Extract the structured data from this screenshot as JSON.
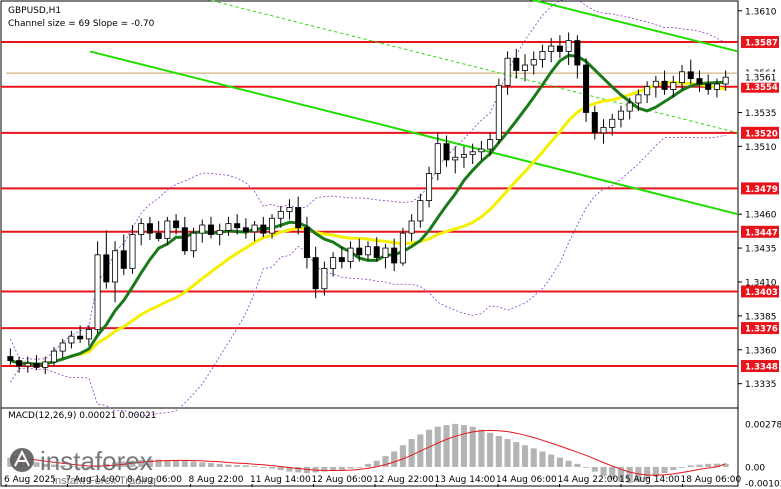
{
  "window": {
    "symbol": "GBPUSD,H1",
    "channel_info": "Channel size = 69 Slope = -0.70"
  },
  "price_axis": {
    "ticks": [
      "1.3610",
      "1.3535",
      "1.3510",
      "1.3460",
      "1.3435",
      "1.3410",
      "1.3385",
      "1.3360",
      "1.3335"
    ]
  },
  "levels": [
    {
      "label": "1.3587",
      "color": "#e8141b"
    },
    {
      "label": "1.3554",
      "color": "#e8141b"
    },
    {
      "label": "1.3520",
      "color": "#e8141b"
    },
    {
      "label": "1.3479",
      "color": "#e8141b"
    },
    {
      "label": "1.3447",
      "color": "#e8141b"
    },
    {
      "label": "1.3403",
      "color": "#e8141b"
    },
    {
      "label": "1.3376",
      "color": "#e8141b"
    },
    {
      "label": "1.3348",
      "color": "#e8141b"
    }
  ],
  "price_badges": [
    {
      "label": "1.3564"
    },
    {
      "label": "1.3561"
    }
  ],
  "time_axis": {
    "labels": [
      "6 Aug 2025",
      "7 Aug 14:00",
      "8 Aug 06:00",
      "8 Aug 22:00",
      "11 Aug 14:00",
      "12 Aug 06:00",
      "12 Aug 22:00",
      "13 Aug 14:00",
      "14 Aug 06:00",
      "14 Aug 22:00",
      "15 Aug 14:00",
      "18 Aug 06:00"
    ]
  },
  "macd": {
    "title": "MACD(12,26,9) 0.00021 0.00021",
    "ticks": [
      "0.00278",
      "0.00",
      "-0.00103"
    ]
  },
  "watermark": {
    "brand": "instaforex",
    "tagline": "Instant Forex Trading"
  },
  "colors": {
    "candles": "#000000",
    "level_line": "#e8141b",
    "channel": "#22dd00",
    "ma_fast": "#1a7a1a",
    "ma_slow": "#f5f000",
    "bollinger": "#8a3cc8",
    "macd_hist": "#b4b4b4",
    "macd_signal": "#e8141b"
  },
  "chart_data": {
    "type": "candlestick",
    "symbol": "GBPUSD",
    "timeframe": "H1",
    "y_range": [
      1.332,
      1.3615
    ],
    "levels": [
      1.3587,
      1.3554,
      1.352,
      1.3479,
      1.3447,
      1.3403,
      1.3376,
      1.3348
    ],
    "last_price": 1.3561,
    "price_marker": 1.3564,
    "ohlc": [
      [
        1.3355,
        1.3361,
        1.3349,
        1.3352
      ],
      [
        1.3352,
        1.3355,
        1.3343,
        1.3348
      ],
      [
        1.3348,
        1.3355,
        1.3343,
        1.335
      ],
      [
        1.335,
        1.3356,
        1.3345,
        1.3347
      ],
      [
        1.3347,
        1.3355,
        1.3342,
        1.3351
      ],
      [
        1.3351,
        1.3362,
        1.3348,
        1.3359
      ],
      [
        1.3359,
        1.3368,
        1.3354,
        1.3365
      ],
      [
        1.3365,
        1.3374,
        1.3361,
        1.337
      ],
      [
        1.337,
        1.3378,
        1.3365,
        1.3368
      ],
      [
        1.3368,
        1.3378,
        1.3363,
        1.3375
      ],
      [
        1.3375,
        1.344,
        1.3372,
        1.343
      ],
      [
        1.343,
        1.3448,
        1.3405,
        1.341
      ],
      [
        1.341,
        1.344,
        1.3395,
        1.3433
      ],
      [
        1.3433,
        1.3445,
        1.3415,
        1.342
      ],
      [
        1.342,
        1.3452,
        1.3416,
        1.3445
      ],
      [
        1.3445,
        1.3457,
        1.3437,
        1.3453
      ],
      [
        1.3453,
        1.3458,
        1.3441,
        1.3446
      ],
      [
        1.3446,
        1.3455,
        1.344,
        1.3442
      ],
      [
        1.3442,
        1.3458,
        1.3437,
        1.3455
      ],
      [
        1.3455,
        1.346,
        1.3445,
        1.345
      ],
      [
        1.345,
        1.3458,
        1.343,
        1.3433
      ],
      [
        1.3433,
        1.345,
        1.3428,
        1.3446
      ],
      [
        1.3446,
        1.3456,
        1.3439,
        1.3452
      ],
      [
        1.3452,
        1.3458,
        1.3442,
        1.3445
      ],
      [
        1.3445,
        1.3453,
        1.3437,
        1.3448
      ],
      [
        1.3448,
        1.3458,
        1.3444,
        1.3453
      ],
      [
        1.3453,
        1.346,
        1.3445,
        1.345
      ],
      [
        1.345,
        1.3457,
        1.3442,
        1.3447
      ],
      [
        1.3447,
        1.3455,
        1.344,
        1.3452
      ],
      [
        1.3452,
        1.3458,
        1.3443,
        1.3446
      ],
      [
        1.3446,
        1.346,
        1.3442,
        1.3457
      ],
      [
        1.3457,
        1.3466,
        1.345,
        1.3462
      ],
      [
        1.3462,
        1.3471,
        1.3456,
        1.3465
      ],
      [
        1.3465,
        1.3473,
        1.3445,
        1.345
      ],
      [
        1.345,
        1.3458,
        1.342,
        1.3428
      ],
      [
        1.3428,
        1.3436,
        1.3398,
        1.3405
      ],
      [
        1.3405,
        1.3425,
        1.34,
        1.342
      ],
      [
        1.342,
        1.3432,
        1.3414,
        1.3428
      ],
      [
        1.3428,
        1.3436,
        1.342,
        1.3425
      ],
      [
        1.3425,
        1.344,
        1.342,
        1.3435
      ],
      [
        1.3435,
        1.3442,
        1.3425,
        1.343
      ],
      [
        1.343,
        1.344,
        1.3426,
        1.3436
      ],
      [
        1.3436,
        1.3443,
        1.3425,
        1.3428
      ],
      [
        1.3428,
        1.3438,
        1.342,
        1.3435
      ],
      [
        1.3435,
        1.3442,
        1.3418,
        1.3424
      ],
      [
        1.3424,
        1.345,
        1.3422,
        1.3446
      ],
      [
        1.3446,
        1.346,
        1.344,
        1.3455
      ],
      [
        1.3455,
        1.3475,
        1.345,
        1.347
      ],
      [
        1.347,
        1.3495,
        1.3465,
        1.349
      ],
      [
        1.349,
        1.352,
        1.3485,
        1.3512
      ],
      [
        1.3512,
        1.3518,
        1.3495,
        1.35
      ],
      [
        1.35,
        1.351,
        1.349,
        1.3502
      ],
      [
        1.3502,
        1.351,
        1.3494,
        1.3504
      ],
      [
        1.3504,
        1.3512,
        1.3497,
        1.3506
      ],
      [
        1.3506,
        1.3514,
        1.35,
        1.3508
      ],
      [
        1.3508,
        1.352,
        1.3503,
        1.3515
      ],
      [
        1.3515,
        1.356,
        1.3512,
        1.3555
      ],
      [
        1.3555,
        1.358,
        1.3548,
        1.3575
      ],
      [
        1.3575,
        1.3582,
        1.356,
        1.3566
      ],
      [
        1.3566,
        1.3578,
        1.3558,
        1.357
      ],
      [
        1.357,
        1.358,
        1.3563,
        1.3574
      ],
      [
        1.3574,
        1.3585,
        1.3568,
        1.358
      ],
      [
        1.358,
        1.359,
        1.3572,
        1.3584
      ],
      [
        1.3584,
        1.3592,
        1.3575,
        1.358
      ],
      [
        1.358,
        1.3594,
        1.357,
        1.3588
      ],
      [
        1.3588,
        1.3592,
        1.356,
        1.357
      ],
      [
        1.357,
        1.3575,
        1.3528,
        1.3535
      ],
      [
        1.3535,
        1.354,
        1.3515,
        1.352
      ],
      [
        1.352,
        1.353,
        1.3512,
        1.3524
      ],
      [
        1.3524,
        1.3534,
        1.3518,
        1.353
      ],
      [
        1.353,
        1.354,
        1.3524,
        1.3536
      ],
      [
        1.3536,
        1.3546,
        1.353,
        1.3542
      ],
      [
        1.3542,
        1.3552,
        1.3536,
        1.3548
      ],
      [
        1.3548,
        1.3558,
        1.3542,
        1.3554
      ],
      [
        1.3554,
        1.3562,
        1.3546,
        1.3558
      ],
      [
        1.3558,
        1.3566,
        1.3548,
        1.3552
      ],
      [
        1.3552,
        1.3562,
        1.3546,
        1.3557
      ],
      [
        1.3557,
        1.357,
        1.3552,
        1.3565
      ],
      [
        1.3565,
        1.3574,
        1.3556,
        1.356
      ],
      [
        1.356,
        1.3566,
        1.355,
        1.3556
      ],
      [
        1.3556,
        1.3563,
        1.3548,
        1.3552
      ],
      [
        1.3552,
        1.356,
        1.3546,
        1.3556
      ],
      [
        1.3556,
        1.3566,
        1.3551,
        1.3561
      ]
    ],
    "macd": {
      "zero_line": 0.0,
      "range": [
        -0.0011,
        0.0029
      ],
      "histogram": [
        0.0006,
        0.0005,
        0.0004,
        0.0003,
        0.0002,
        0.00015,
        0.0001,
        5e-05,
        0.0,
        -0.0001,
        0.0001,
        0.0002,
        0.0003,
        0.00035,
        0.0004,
        0.00045,
        0.0005,
        0.00048,
        0.00045,
        0.00042,
        0.0004,
        0.00035,
        0.0003,
        0.00025,
        0.0002,
        0.00015,
        0.00012,
        0.0001,
        5e-05,
        0.0,
        -0.0001,
        -0.0002,
        -0.0003,
        -0.00035,
        -0.0004,
        -0.00035,
        -0.0003,
        -0.00025,
        -0.0002,
        -0.0001,
        0.0,
        0.0002,
        0.0004,
        0.0007,
        0.001,
        0.0014,
        0.0018,
        0.0021,
        0.0024,
        0.0026,
        0.0027,
        0.00278,
        0.0027,
        0.0026,
        0.0024,
        0.0022,
        0.002,
        0.0018,
        0.0016,
        0.0014,
        0.0012,
        0.001,
        0.0008,
        0.0006,
        0.0004,
        0.0002,
        0.0,
        -0.0003,
        -0.0006,
        -0.0008,
        -0.00095,
        -0.00103,
        -0.00095,
        -0.0008,
        -0.0006,
        -0.0004,
        -0.0002,
        0.0,
        0.0001,
        0.00015,
        0.0002,
        0.00021,
        0.00021
      ],
      "signal": [
        0.00065,
        0.0006,
        0.00052,
        0.00045,
        0.00038,
        0.0003,
        0.00024,
        0.00018,
        0.00012,
        6e-05,
        5e-05,
        8e-05,
        0.00012,
        0.00018,
        0.00024,
        0.0003,
        0.00035,
        0.00039,
        0.00041,
        0.00042,
        0.00042,
        0.00041,
        0.00039,
        0.00036,
        0.00033,
        0.00029,
        0.00025,
        0.00022,
        0.00018,
        0.00014,
        9e-05,
        3e-05,
        -4e-05,
        -0.0001,
        -0.00016,
        -0.0002,
        -0.00022,
        -0.00023,
        -0.00022,
        -0.0002,
        -0.00016,
        -9e-05,
        1e-05,
        0.00015,
        0.00032,
        0.00052,
        0.00076,
        0.00102,
        0.00128,
        0.00154,
        0.00178,
        0.00198,
        0.00214,
        0.00226,
        0.00234,
        0.00236,
        0.00234,
        0.00228,
        0.00218,
        0.00205,
        0.0019,
        0.00172,
        0.00154,
        0.00135,
        0.00115,
        0.00095,
        0.00075,
        0.00052,
        0.00028,
        6e-05,
        -0.00015,
        -0.00033,
        -0.00045,
        -0.00052,
        -0.00054,
        -0.00051,
        -0.00045,
        -0.00036,
        -0.00026,
        -0.00016,
        -7e-05,
        0.0,
        0.00021
      ]
    }
  }
}
